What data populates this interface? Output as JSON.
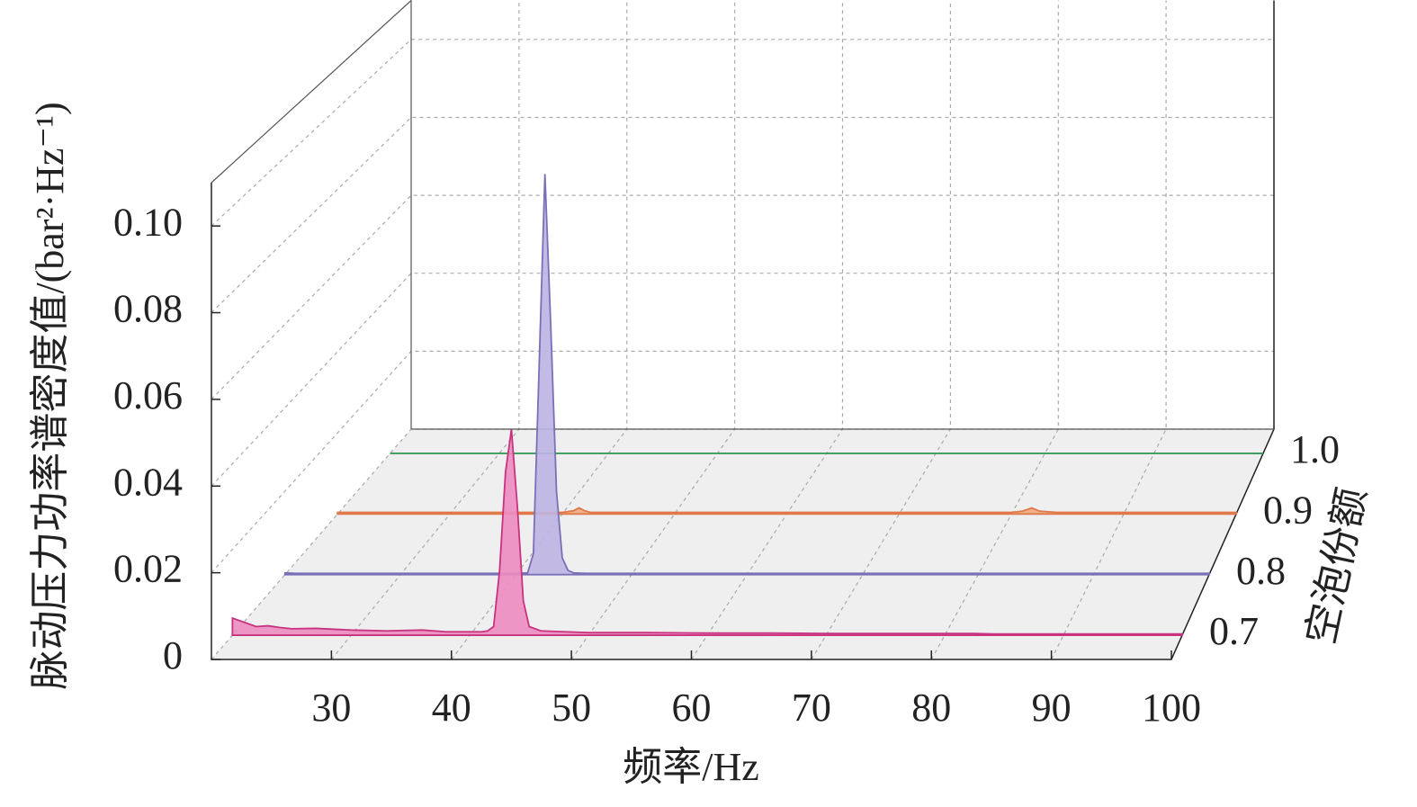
{
  "chart_data": {
    "type": "waterfall3d",
    "xlabel": "频率/Hz",
    "ylabel": "脉动压力功率谱密度值/(bar²·Hz⁻¹)",
    "zlabel": "空泡份额",
    "x": [
      20,
      21,
      22,
      23,
      24,
      25,
      27,
      30,
      33,
      36,
      38,
      40,
      41,
      41.5,
      42,
      42.5,
      43,
      43.5,
      44,
      44.5,
      45,
      46,
      48,
      50,
      55,
      60,
      65,
      70,
      75,
      80,
      81,
      81.8,
      82.5,
      84,
      90,
      95,
      100
    ],
    "xlim": [
      20,
      100
    ],
    "xticks": [
      30,
      40,
      50,
      60,
      70,
      80,
      90,
      100
    ],
    "ylim": [
      0,
      0.11
    ],
    "yticks": [
      0,
      0.02,
      0.04,
      0.06,
      0.08,
      {
        "value": 0.1,
        "label": "0.10"
      }
    ],
    "zlim": [
      0.66,
      1.04
    ],
    "zticks": [
      0.7,
      0.8,
      0.9,
      {
        "value": 1,
        "label": "1.0"
      }
    ],
    "grid": true,
    "series": [
      {
        "name": "0.7",
        "z": 0.7,
        "color": "#c8327e",
        "fill": "#ec8cc0",
        "values": [
          0.004,
          0.003,
          0.002,
          0.0022,
          0.0018,
          0.0015,
          0.0016,
          0.0012,
          0.001,
          0.0012,
          0.0008,
          0.0008,
          0.0008,
          0.001,
          0.002,
          0.015,
          0.038,
          0.048,
          0.03,
          0.008,
          0.002,
          0.001,
          0.0008,
          0.0006,
          0.0006,
          0.0005,
          0.0005,
          0.0004,
          0.0004,
          0.0004,
          0.0004,
          0.0004,
          0.0004,
          0.0003,
          0.0003,
          0.0003,
          0.0003
        ]
      },
      {
        "name": "0.8",
        "z": 0.8,
        "color": "#7a70b8",
        "fill": "#bcb4e2",
        "values": [
          0.0004,
          0.0003,
          0.0003,
          0.0003,
          0.0003,
          0.0003,
          0.0003,
          0.0003,
          0.0003,
          0.0003,
          0.0003,
          0.0003,
          0.0004,
          0.005,
          0.05,
          0.096,
          0.06,
          0.02,
          0.004,
          0.001,
          0.0004,
          0.0003,
          0.0003,
          0.0003,
          0.0003,
          0.0003,
          0.0003,
          0.0003,
          0.0003,
          0.0003,
          0.0003,
          0.0003,
          0.0003,
          0.0003,
          0.0003,
          0.0003,
          0.0003
        ]
      },
      {
        "name": "0.9",
        "z": 0.9,
        "color": "#e07848",
        "fill": "#f0a880",
        "values": [
          0.0004,
          0.0004,
          0.0004,
          0.0004,
          0.0004,
          0.0004,
          0.0004,
          0.0004,
          0.0004,
          0.0004,
          0.0004,
          0.0004,
          0.0008,
          0.0015,
          0.0008,
          0.0004,
          0.0004,
          0.0004,
          0.0004,
          0.0004,
          0.0004,
          0.0004,
          0.0004,
          0.0004,
          0.0004,
          0.0004,
          0.0004,
          0.0004,
          0.0004,
          0.0004,
          0.0007,
          0.0015,
          0.0007,
          0.0004,
          0.0004,
          0.0004,
          0.0004
        ]
      },
      {
        "name": "1.0",
        "z": 1,
        "color": "#3a9a5a",
        "fill": "#9ed0b0",
        "values": [
          0,
          0,
          0,
          0,
          0,
          0,
          0,
          0,
          0,
          0,
          0,
          0,
          0,
          0,
          0,
          0,
          0,
          0,
          0,
          0,
          0,
          0,
          0,
          0,
          0,
          0,
          0,
          0,
          0,
          0,
          0,
          0,
          0,
          0,
          0,
          0,
          0
        ]
      }
    ]
  }
}
